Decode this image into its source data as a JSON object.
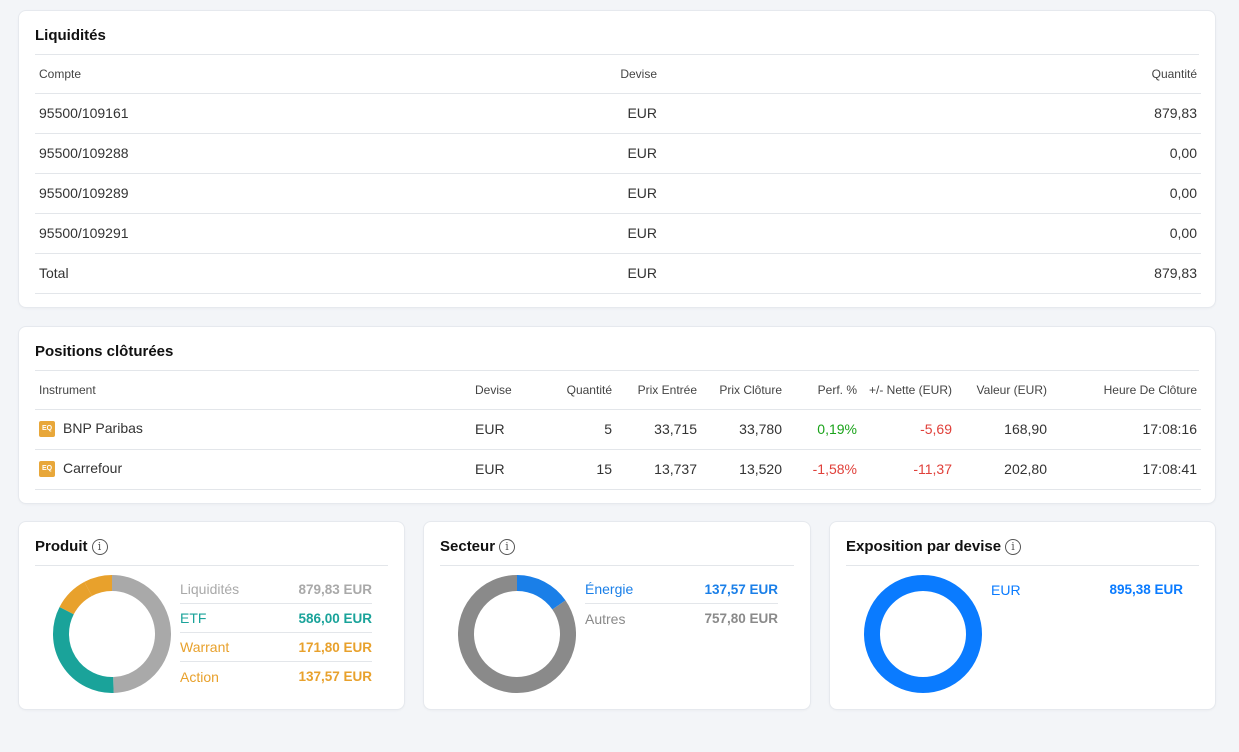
{
  "liquidites": {
    "title": "Liquidités",
    "headers": {
      "compte": "Compte",
      "devise": "Devise",
      "quantite": "Quantité"
    },
    "rows": [
      {
        "compte": "95500/109161",
        "devise": "EUR",
        "quantite": "879,83"
      },
      {
        "compte": "95500/109288",
        "devise": "EUR",
        "quantite": "0,00"
      },
      {
        "compte": "95500/109289",
        "devise": "EUR",
        "quantite": "0,00"
      },
      {
        "compte": "95500/109291",
        "devise": "EUR",
        "quantite": "0,00"
      },
      {
        "compte": "Total",
        "devise": "EUR",
        "quantite": "879,83"
      }
    ]
  },
  "positions": {
    "title": "Positions clôturées",
    "headers": {
      "instrument": "Instrument",
      "devise": "Devise",
      "quantite": "Quantité",
      "prix_entree": "Prix Entrée",
      "prix_cloture": "Prix Clôture",
      "perf": "Perf. %",
      "nette": "+/- Nette (EUR)",
      "valeur": "Valeur (EUR)",
      "heure": "Heure De Clôture"
    },
    "rows": [
      {
        "icon": "EQ",
        "instrument": "BNP Paribas",
        "devise": "EUR",
        "quantite": "5",
        "prix_entree": "33,715",
        "prix_cloture": "33,780",
        "perf": "0,19%",
        "nette": "-5,69",
        "valeur": "168,90",
        "heure": "17:08:16"
      },
      {
        "icon": "EQ",
        "instrument": "Carrefour",
        "devise": "EUR",
        "quantite": "15",
        "prix_entree": "13,737",
        "prix_cloture": "13,520",
        "perf": "-1,58%",
        "nette": "-11,37",
        "valeur": "202,80",
        "heure": "17:08:41"
      }
    ]
  },
  "produit": {
    "title": "Produit",
    "items": [
      {
        "label": "Liquidités",
        "value": "879,83 EUR",
        "amount": 879.83,
        "color": "#a9a9a9"
      },
      {
        "label": "ETF",
        "value": "586,00 EUR",
        "amount": 586.0,
        "color": "#1aa39a"
      },
      {
        "label": "Warrant",
        "value": "171,80 EUR",
        "amount": 171.8,
        "color": "#e8a12c"
      },
      {
        "label": "Action",
        "value": "137,57 EUR",
        "amount": 137.57,
        "color": "#e8a12c"
      }
    ]
  },
  "secteur": {
    "title": "Secteur",
    "items": [
      {
        "label": "Énergie",
        "value": "137,57 EUR",
        "amount": 137.57,
        "color": "#1a7fe8"
      },
      {
        "label": "Autres",
        "value": "757,80 EUR",
        "amount": 757.8,
        "color": "#8a8a8a"
      }
    ]
  },
  "devise": {
    "title": "Exposition par devise",
    "items": [
      {
        "label": "EUR",
        "value": "895,38 EUR",
        "amount": 895.38,
        "color": "#0a7bff"
      }
    ]
  }
}
